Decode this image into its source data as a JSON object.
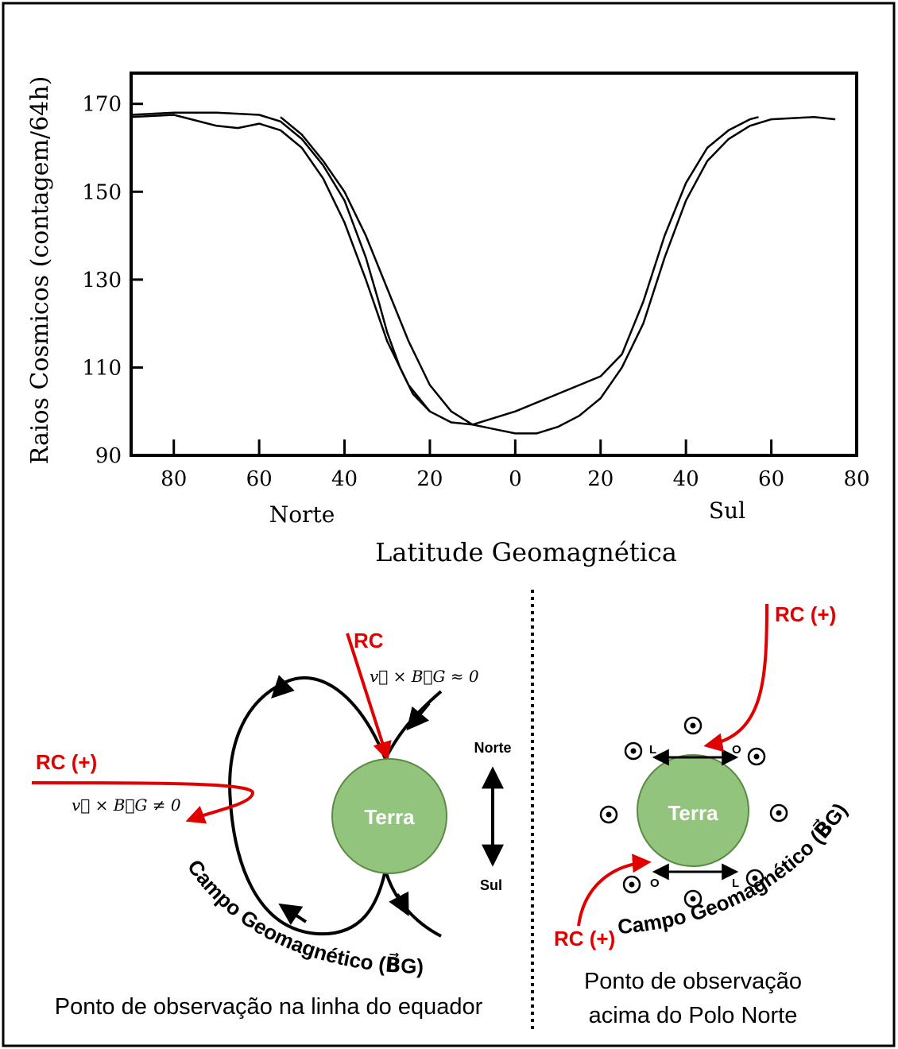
{
  "chart_data": {
    "type": "line",
    "y_label": "Raios Cosmicos (contagem/64h)",
    "x_label": "Latitude Geomagnética",
    "annotations": [
      "Norte",
      "Sul"
    ],
    "xlim": [
      -90,
      80
    ],
    "ylim": [
      90,
      177
    ],
    "xticks": [
      {
        "value": -80,
        "label": "80"
      },
      {
        "value": -60,
        "label": "60"
      },
      {
        "value": -40,
        "label": "40"
      },
      {
        "value": -20,
        "label": "20"
      },
      0,
      20,
      40,
      60,
      80
    ],
    "yticks": [
      90,
      110,
      130,
      150,
      170
    ],
    "series": [
      {
        "color": "#000000",
        "x": [
          -90,
          -80,
          -70,
          -60,
          -55,
          -50,
          -45,
          -40,
          -35,
          -32,
          -30,
          -27,
          -24,
          -20
        ],
        "values": [
          167.5,
          168,
          168,
          167.5,
          166,
          162,
          156,
          148,
          135,
          125,
          118,
          110,
          104,
          100
        ]
      },
      {
        "color": "#000000",
        "x": [
          -90,
          -80,
          -70,
          -65,
          -60,
          -55,
          -50,
          -45,
          -40,
          -35,
          -30,
          -25,
          -20,
          -15,
          -10,
          0,
          10,
          20,
          25,
          30,
          35,
          40,
          45,
          50,
          55,
          57
        ],
        "values": [
          167,
          167.5,
          165,
          164.5,
          165.5,
          164,
          160,
          153,
          143,
          130,
          116,
          106,
          100,
          97.5,
          97,
          100,
          104,
          108,
          113,
          125,
          140,
          152,
          160,
          164,
          166.5,
          167
        ]
      },
      {
        "color": "#000000",
        "x": [
          -55,
          -50,
          -45,
          -40,
          -35,
          -30,
          -25,
          -20,
          -15,
          -10,
          0,
          5,
          10,
          15,
          20,
          25,
          30,
          35,
          40,
          45,
          50,
          55,
          60,
          70,
          75
        ],
        "values": [
          167,
          163,
          157,
          150,
          140,
          128,
          116,
          106,
          100,
          97,
          95,
          95,
          96.5,
          99,
          103,
          110,
          120,
          135,
          148,
          157,
          162,
          165,
          166.5,
          167,
          166.5
        ]
      }
    ]
  },
  "left_diagram": {
    "rc": "RC",
    "cross_zero": "v⃗ × B⃗G ≈ 0",
    "rc_plus": "RC (+)",
    "cross_nonzero": "v⃗ × B⃗G ≠ 0",
    "earth": "Terra",
    "north": "Norte",
    "south": "Sul",
    "field": "Campo Geomagnético (B⃗G)",
    "caption": "Ponto de observação na linha do equador"
  },
  "right_diagram": {
    "rc_top": "RC (+)",
    "rc_bottom": "RC (+)",
    "earth": "Terra",
    "top_left": "L",
    "top_right": "O",
    "bottom_left": "O",
    "bottom_right": "L",
    "field": "Campo Geomagnético (B⃗G)",
    "caption": [
      "Ponto de observação",
      "acima do Polo Norte"
    ]
  }
}
